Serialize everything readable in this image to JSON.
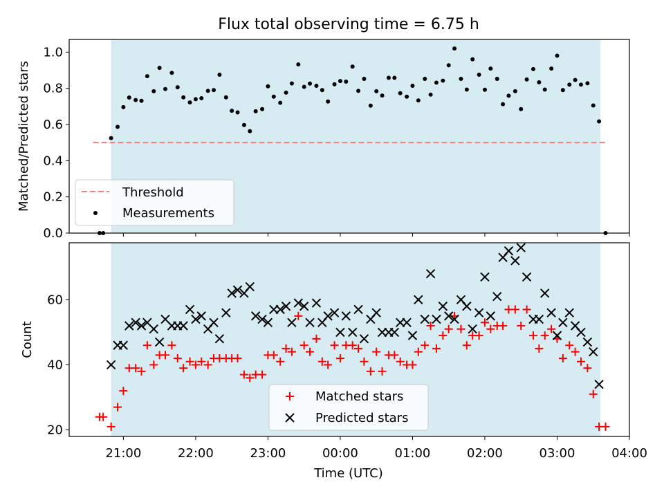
{
  "figure": {
    "title": "Flux total observing time = 6.75 h",
    "xlabel": "Time (UTC)",
    "x_ticks": [
      "21:00",
      "22:00",
      "23:00",
      "00:00",
      "01:00",
      "02:00",
      "03:00",
      "04:00"
    ],
    "observing_window_hours": [
      20.83,
      27.6
    ],
    "colors": {
      "window": "#add8e6",
      "threshold": "#f08080",
      "matched": "#ff0000",
      "predicted": "#000000",
      "measurement": "#000000"
    }
  },
  "chart_data": [
    {
      "type": "scatter",
      "ylabel": "Matched/Predicted stars",
      "ylim": [
        0,
        1.07
      ],
      "y_ticks": [
        "0.0",
        "0.2",
        "0.4",
        "0.6",
        "0.8",
        "1.0"
      ],
      "threshold": 0.5,
      "legend": {
        "placement": "lower-left",
        "entries": [
          "Threshold",
          "Measurements"
        ]
      },
      "series": [
        {
          "name": "Measurements",
          "x": [
            20.67,
            20.72,
            20.83,
            20.92,
            21.0,
            21.08,
            21.17,
            21.25,
            21.33,
            21.42,
            21.5,
            21.58,
            21.67,
            21.75,
            21.83,
            21.92,
            22.0,
            22.08,
            22.17,
            22.25,
            22.33,
            22.42,
            22.5,
            22.58,
            22.67,
            22.75,
            22.83,
            22.92,
            23.0,
            23.08,
            23.17,
            23.25,
            23.33,
            23.42,
            23.5,
            23.58,
            23.67,
            23.75,
            23.83,
            23.92,
            24.0,
            24.08,
            24.17,
            24.25,
            24.33,
            24.42,
            24.5,
            24.58,
            24.67,
            24.75,
            24.83,
            24.92,
            25.0,
            25.08,
            25.17,
            25.25,
            25.33,
            25.42,
            25.5,
            25.58,
            25.67,
            25.75,
            25.83,
            25.92,
            26.0,
            26.08,
            26.17,
            26.25,
            26.33,
            26.42,
            26.5,
            26.58,
            26.67,
            26.75,
            26.83,
            26.92,
            27.0,
            27.08,
            27.17,
            27.25,
            27.33,
            27.42,
            27.5,
            27.58,
            27.67
          ],
          "values": [
            0.0,
            0.0,
            0.525,
            0.587,
            0.696,
            0.749,
            0.735,
            0.731,
            0.867,
            0.784,
            0.913,
            0.796,
            0.885,
            0.806,
            0.75,
            0.722,
            0.74,
            0.745,
            0.786,
            0.79,
            0.875,
            0.75,
            0.676,
            0.667,
            0.597,
            0.563,
            0.673,
            0.685,
            0.811,
            0.754,
            0.72,
            0.776,
            0.827,
            0.932,
            0.808,
            0.826,
            0.814,
            0.79,
            0.727,
            0.822,
            0.84,
            0.837,
            0.92,
            0.786,
            0.852,
            0.704,
            0.784,
            0.76,
            0.858,
            0.858,
            0.773,
            0.754,
            0.814,
            0.733,
            0.852,
            0.765,
            0.831,
            0.842,
            0.927,
            1.02,
            0.852,
            0.793,
            0.96,
            0.875,
            0.792,
            0.909,
            0.852,
            0.712,
            0.759,
            0.784,
            0.685,
            0.849,
            0.906,
            0.833,
            0.793,
            0.909,
            0.98,
            0.79,
            0.82,
            0.846,
            0.82,
            0.828,
            0.705,
            0.617,
            0.0
          ]
        }
      ]
    },
    {
      "type": "scatter",
      "ylabel": "Count",
      "ylim": [
        18,
        77.5
      ],
      "y_ticks": [
        "20",
        "40",
        "60"
      ],
      "legend": {
        "placement": "lower-center",
        "entries": [
          "Matched stars",
          "Predicted stars"
        ]
      },
      "series": [
        {
          "name": "Matched stars",
          "x": [
            20.67,
            20.72,
            20.83,
            20.92,
            21.0,
            21.08,
            21.17,
            21.25,
            21.33,
            21.42,
            21.5,
            21.58,
            21.67,
            21.75,
            21.83,
            21.92,
            22.0,
            22.08,
            22.17,
            22.25,
            22.33,
            22.42,
            22.5,
            22.58,
            22.67,
            22.75,
            22.83,
            22.92,
            23.0,
            23.08,
            23.17,
            23.25,
            23.33,
            23.42,
            23.5,
            23.58,
            23.67,
            23.75,
            23.83,
            23.92,
            24.0,
            24.08,
            24.17,
            24.25,
            24.33,
            24.42,
            24.5,
            24.58,
            24.67,
            24.75,
            24.83,
            24.92,
            25.0,
            25.08,
            25.17,
            25.25,
            25.33,
            25.42,
            25.5,
            25.58,
            25.67,
            25.75,
            25.83,
            25.92,
            26.0,
            26.08,
            26.17,
            26.25,
            26.33,
            26.42,
            26.5,
            26.58,
            26.67,
            26.75,
            26.83,
            26.92,
            27.0,
            27.08,
            27.17,
            27.25,
            27.33,
            27.42,
            27.5,
            27.58,
            27.67
          ],
          "values": [
            24,
            24,
            21,
            27,
            32,
            39,
            39,
            38,
            46,
            40,
            43,
            43,
            46,
            42,
            39,
            41,
            40,
            41,
            40,
            42,
            42,
            42,
            42,
            42,
            37,
            36,
            37,
            37,
            43,
            43,
            41,
            45,
            44,
            55,
            46,
            44,
            48,
            41,
            40,
            46,
            42,
            46,
            46,
            45,
            41,
            38,
            44,
            38,
            43,
            43,
            41,
            40,
            40,
            44,
            46,
            52,
            45,
            49,
            51,
            55,
            51,
            46,
            49,
            49,
            53,
            51,
            52,
            52,
            57,
            57,
            52,
            57,
            49,
            45,
            49,
            51,
            48,
            42,
            46,
            44,
            41,
            39,
            31,
            21,
            21
          ]
        },
        {
          "name": "Predicted stars",
          "x": [
            20.83,
            20.92,
            21.0,
            21.08,
            21.17,
            21.25,
            21.33,
            21.42,
            21.5,
            21.58,
            21.67,
            21.75,
            21.83,
            21.92,
            22.0,
            22.08,
            22.17,
            22.25,
            22.33,
            22.42,
            22.5,
            22.58,
            22.67,
            22.75,
            22.83,
            22.92,
            23.0,
            23.08,
            23.17,
            23.25,
            23.33,
            23.42,
            23.5,
            23.58,
            23.67,
            23.75,
            23.83,
            23.92,
            24.0,
            24.08,
            24.17,
            24.25,
            24.33,
            24.42,
            24.5,
            24.58,
            24.67,
            24.75,
            24.83,
            24.92,
            25.0,
            25.08,
            25.17,
            25.25,
            25.33,
            25.42,
            25.5,
            25.58,
            25.67,
            25.75,
            25.83,
            25.92,
            26.0,
            26.08,
            26.17,
            26.25,
            26.33,
            26.42,
            26.5,
            26.58,
            26.67,
            26.75,
            26.83,
            26.92,
            27.0,
            27.08,
            27.17,
            27.25,
            27.33,
            27.42,
            27.5,
            27.58
          ],
          "values": [
            40,
            46,
            46,
            52,
            53,
            52,
            53,
            51,
            47,
            54,
            52,
            52,
            52,
            57,
            54,
            55,
            51,
            53,
            48,
            56,
            62,
            63,
            62,
            64,
            55,
            54,
            53,
            57,
            57,
            58,
            53,
            59,
            58,
            53,
            59,
            53,
            55,
            56,
            50,
            55,
            50,
            57,
            48,
            54,
            56,
            50,
            50,
            50,
            53,
            53,
            49,
            60,
            54,
            68,
            54,
            58,
            55,
            54,
            60,
            58,
            51,
            56,
            67,
            55,
            61,
            73,
            75,
            72,
            76,
            67,
            54,
            54,
            62,
            56,
            49,
            53,
            56,
            52,
            50,
            47,
            44,
            34
          ]
        }
      ]
    }
  ]
}
